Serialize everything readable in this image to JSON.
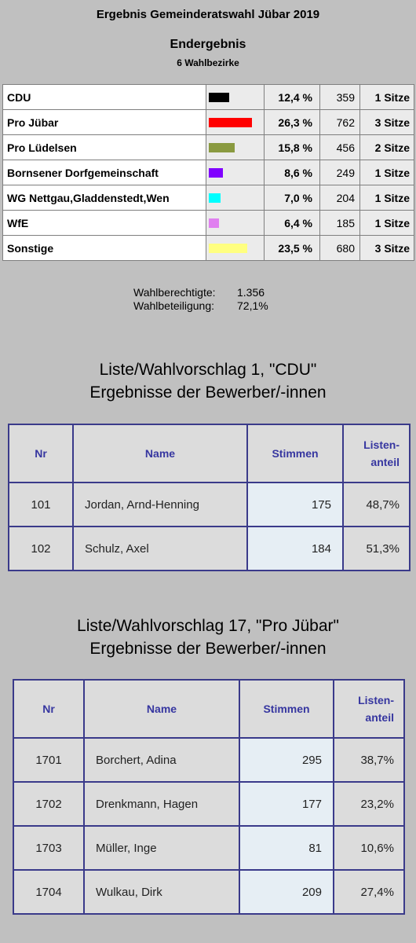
{
  "header": {
    "title": "Ergebnis Gemeinderatswahl Jübar 2019",
    "subtitle": "Endergebnis",
    "districts": "6 Wahlbezirke"
  },
  "results": [
    {
      "party": "CDU",
      "color": "#000000",
      "percent": "12,4 %",
      "share": 12.4,
      "votes": "359",
      "seats": "1 Sitze"
    },
    {
      "party": "Pro Jübar",
      "color": "#ff0000",
      "percent": "26,3 %",
      "share": 26.3,
      "votes": "762",
      "seats": "3 Sitze"
    },
    {
      "party": "Pro Lüdelsen",
      "color": "#8a9a40",
      "percent": "15,8 %",
      "share": 15.8,
      "votes": "456",
      "seats": "2 Sitze"
    },
    {
      "party": "Bornsener Dorfgemeinschaft",
      "color": "#8000ff",
      "percent": "8,6 %",
      "share": 8.6,
      "votes": "249",
      "seats": "1 Sitze"
    },
    {
      "party": "WG Nettgau,Gladdenstedt,Wen",
      "color": "#00ffff",
      "percent": "7,0 %",
      "share": 7.0,
      "votes": "204",
      "seats": "1 Sitze"
    },
    {
      "party": "WfE",
      "color": "#e080f0",
      "percent": "6,4 %",
      "share": 6.4,
      "votes": "185",
      "seats": "1 Sitze"
    },
    {
      "party": "Sonstige",
      "color": "#ffff80",
      "percent": "23,5 %",
      "share": 23.5,
      "votes": "680",
      "seats": "3 Sitze"
    }
  ],
  "stats": {
    "eligible_label": "Wahlberechtigte:",
    "eligible_value": "1.356",
    "turnout_label": "Wahlbeteiligung:",
    "turnout_value": "72,1%"
  },
  "lists": [
    {
      "heading_line1": "Liste/Wahlvorschlag 1, \"CDU\"",
      "heading_line2": "Ergebnisse der Bewerber/-innen",
      "columns": {
        "nr": "Nr",
        "name": "Name",
        "votes": "Stimmen",
        "share_line1": "Listen-",
        "share_line2": "anteil"
      },
      "candidates": [
        {
          "nr": "101",
          "name": "Jordan, Arnd-Henning",
          "votes": "175",
          "share": "48,7%"
        },
        {
          "nr": "102",
          "name": "Schulz, Axel",
          "votes": "184",
          "share": "51,3%"
        }
      ]
    },
    {
      "heading_line1": "Liste/Wahlvorschlag 17, \"Pro Jübar\"",
      "heading_line2": "Ergebnisse der Bewerber/-innen",
      "columns": {
        "nr": "Nr",
        "name": "Name",
        "votes": "Stimmen",
        "share_line1": "Listen-",
        "share_line2": "anteil"
      },
      "candidates": [
        {
          "nr": "1701",
          "name": "Borchert, Adina",
          "votes": "295",
          "share": "38,7%"
        },
        {
          "nr": "1702",
          "name": "Drenkmann, Hagen",
          "votes": "177",
          "share": "23,2%"
        },
        {
          "nr": "1703",
          "name": "Müller, Inge",
          "votes": "81",
          "share": "10,6%"
        },
        {
          "nr": "1704",
          "name": "Wulkau, Dirk",
          "votes": "209",
          "share": "27,4%"
        }
      ]
    }
  ]
}
